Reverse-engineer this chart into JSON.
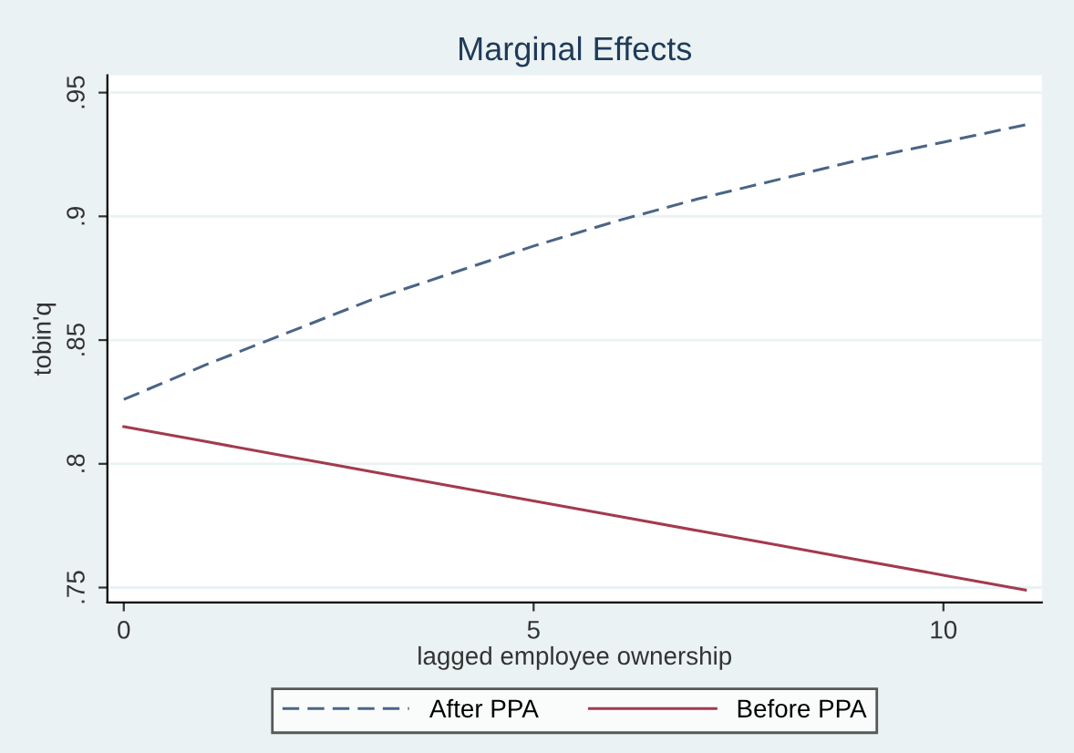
{
  "chart_data": {
    "type": "line",
    "title": "Marginal Effects",
    "xlabel": "lagged employee ownership",
    "ylabel": "tobin'q",
    "x": [
      0,
      1,
      2,
      3,
      4,
      5,
      6,
      7,
      8,
      9,
      10,
      11
    ],
    "series": [
      {
        "name": "After PPA",
        "color": "#4a6585",
        "line_style": "dashed",
        "values": [
          0.826,
          0.84,
          0.853,
          0.866,
          0.877,
          0.888,
          0.898,
          0.907,
          0.915,
          0.923,
          0.93,
          0.937
        ]
      },
      {
        "name": "Before PPA",
        "color": "#a33a4e",
        "line_style": "solid",
        "values": [
          0.815,
          0.809,
          0.803,
          0.797,
          0.791,
          0.785,
          0.779,
          0.773,
          0.767,
          0.761,
          0.755,
          0.749
        ]
      }
    ],
    "xlim": [
      -0.2,
      11.2
    ],
    "ylim": [
      0.744,
      0.957
    ],
    "xticks": [
      0,
      5,
      10
    ],
    "yticks": [
      {
        "value": 0.75,
        "label": ".75"
      },
      {
        "value": 0.8,
        "label": ".8"
      },
      {
        "value": 0.85,
        "label": ".85"
      },
      {
        "value": 0.9,
        "label": ".9"
      },
      {
        "value": 0.95,
        "label": ".95"
      }
    ],
    "grid": "y",
    "legend": "bottom",
    "marker": "none"
  }
}
